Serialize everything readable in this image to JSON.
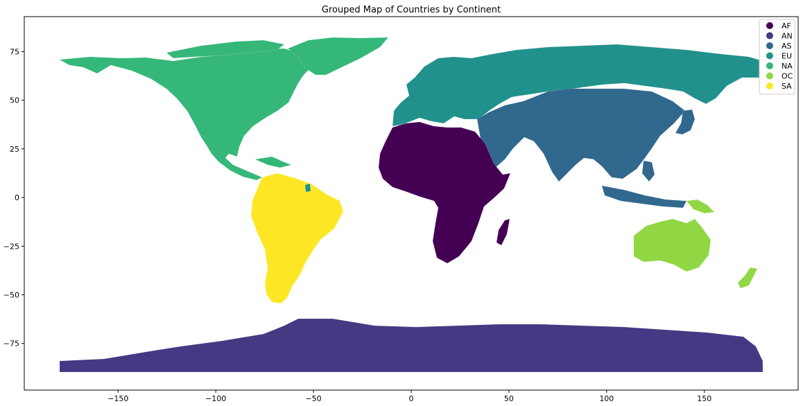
{
  "chart_data": {
    "type": "map",
    "title": "Grouped Map of Countries by Continent",
    "xlabel": "",
    "ylabel": "",
    "xlim": [
      -198,
      198
    ],
    "ylim": [
      -99,
      93
    ],
    "x_ticks": [
      -150,
      -100,
      -50,
      0,
      50,
      100,
      150
    ],
    "y_ticks": [
      75,
      50,
      25,
      0,
      -25,
      -50,
      -75
    ],
    "legend_position": "top-right",
    "categories": [
      {
        "code": "AF",
        "color": "#440154"
      },
      {
        "code": "AN",
        "color": "#443983"
      },
      {
        "code": "AS",
        "color": "#31688e"
      },
      {
        "code": "EU",
        "color": "#21918c"
      },
      {
        "code": "NA",
        "color": "#35b779"
      },
      {
        "code": "OC",
        "color": "#90d743"
      },
      {
        "code": "SA",
        "color": "#fde725"
      }
    ]
  }
}
